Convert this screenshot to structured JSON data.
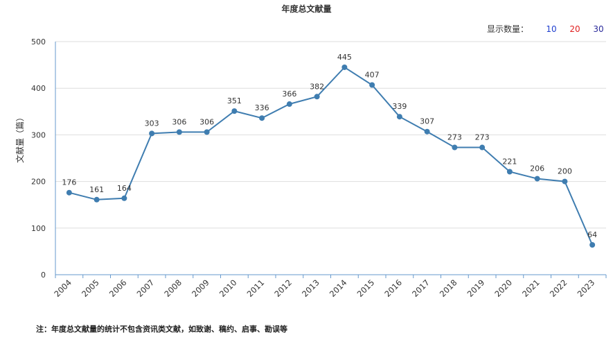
{
  "title": "年度总文献量",
  "display_count": {
    "label": "显示数量：",
    "options": [
      "10",
      "20",
      "30"
    ],
    "colors": [
      "#1f3fcf",
      "#e02020",
      "#2b2b9b"
    ]
  },
  "note": "注：年度总文献量的统计不包含资讯类文献，如致谢、稿约、启事、勘误等",
  "colors": {
    "line": "#3f7db0",
    "point": "#3f7db0",
    "grid": "#dddddd",
    "axis": "#6699cc"
  },
  "chart_data": {
    "type": "line",
    "title": "年度总文献量",
    "xlabel": "",
    "ylabel": "文献量（篇）",
    "ylim": [
      0,
      500
    ],
    "yticks": [
      0,
      100,
      200,
      300,
      400,
      500
    ],
    "grid": true,
    "categories": [
      "2004",
      "2005",
      "2006",
      "2007",
      "2008",
      "2009",
      "2010",
      "2011",
      "2012",
      "2013",
      "2014",
      "2015",
      "2016",
      "2017",
      "2018",
      "2019",
      "2020",
      "2021",
      "2022",
      "2023"
    ],
    "series": [
      {
        "values": [
          176,
          161,
          164,
          303,
          306,
          306,
          351,
          336,
          366,
          382,
          445,
          407,
          339,
          307,
          273,
          273,
          221,
          206,
          200,
          64
        ]
      }
    ]
  }
}
